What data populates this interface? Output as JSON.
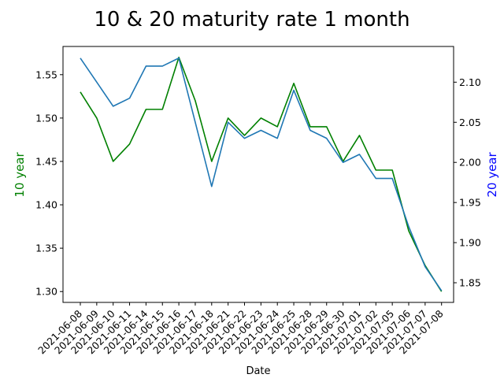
{
  "chart_data": {
    "type": "line",
    "title": "10 & 20 maturity rate 1 month",
    "xlabel": "Date",
    "ylabel_left": "10 year",
    "ylabel_right": "20 year",
    "categories": [
      "2021-06-08",
      "2021-06-09",
      "2021-06-10",
      "2021-06-11",
      "2021-06-14",
      "2021-06-15",
      "2021-06-16",
      "2021-06-17",
      "2021-06-18",
      "2021-06-21",
      "2021-06-22",
      "2021-06-23",
      "2021-06-24",
      "2021-06-25",
      "2021-06-28",
      "2021-06-29",
      "2021-06-30",
      "2021-07-01",
      "2021-07-02",
      "2021-07-05",
      "2021-07-06",
      "2021-07-07",
      "2021-07-08"
    ],
    "series": [
      {
        "name": "10 year",
        "axis": "left",
        "color": "#008000",
        "values": [
          1.53,
          1.5,
          1.45,
          1.47,
          1.51,
          1.51,
          1.57,
          1.52,
          1.45,
          1.5,
          1.48,
          1.5,
          1.49,
          1.54,
          1.49,
          1.49,
          1.45,
          1.48,
          1.44,
          1.44,
          1.37,
          1.33,
          1.3
        ]
      },
      {
        "name": "20 year",
        "axis": "right",
        "color": "#1f77b4",
        "values": [
          2.13,
          2.1,
          2.07,
          2.08,
          2.12,
          2.12,
          2.13,
          2.05,
          1.97,
          2.05,
          2.03,
          2.04,
          2.03,
          2.09,
          2.04,
          2.03,
          2.0,
          2.01,
          1.98,
          1.98,
          1.92,
          1.87,
          1.84
        ]
      }
    ],
    "left_axis": {
      "ylim": [
        1.2875,
        1.5825
      ],
      "ticks": [
        1.3,
        1.35,
        1.4,
        1.45,
        1.5,
        1.55
      ],
      "tick_labels": [
        "1.30",
        "1.35",
        "1.40",
        "1.45",
        "1.50",
        "1.55"
      ],
      "label_color": "#008000"
    },
    "right_axis": {
      "ylim": [
        1.8255,
        2.1445
      ],
      "ticks": [
        1.85,
        1.9,
        1.95,
        2.0,
        2.05,
        2.1
      ],
      "tick_labels": [
        "1.85",
        "1.90",
        "1.95",
        "2.00",
        "2.05",
        "2.10"
      ],
      "label_color": "#0000ff"
    },
    "grid": false,
    "legend": "none"
  }
}
